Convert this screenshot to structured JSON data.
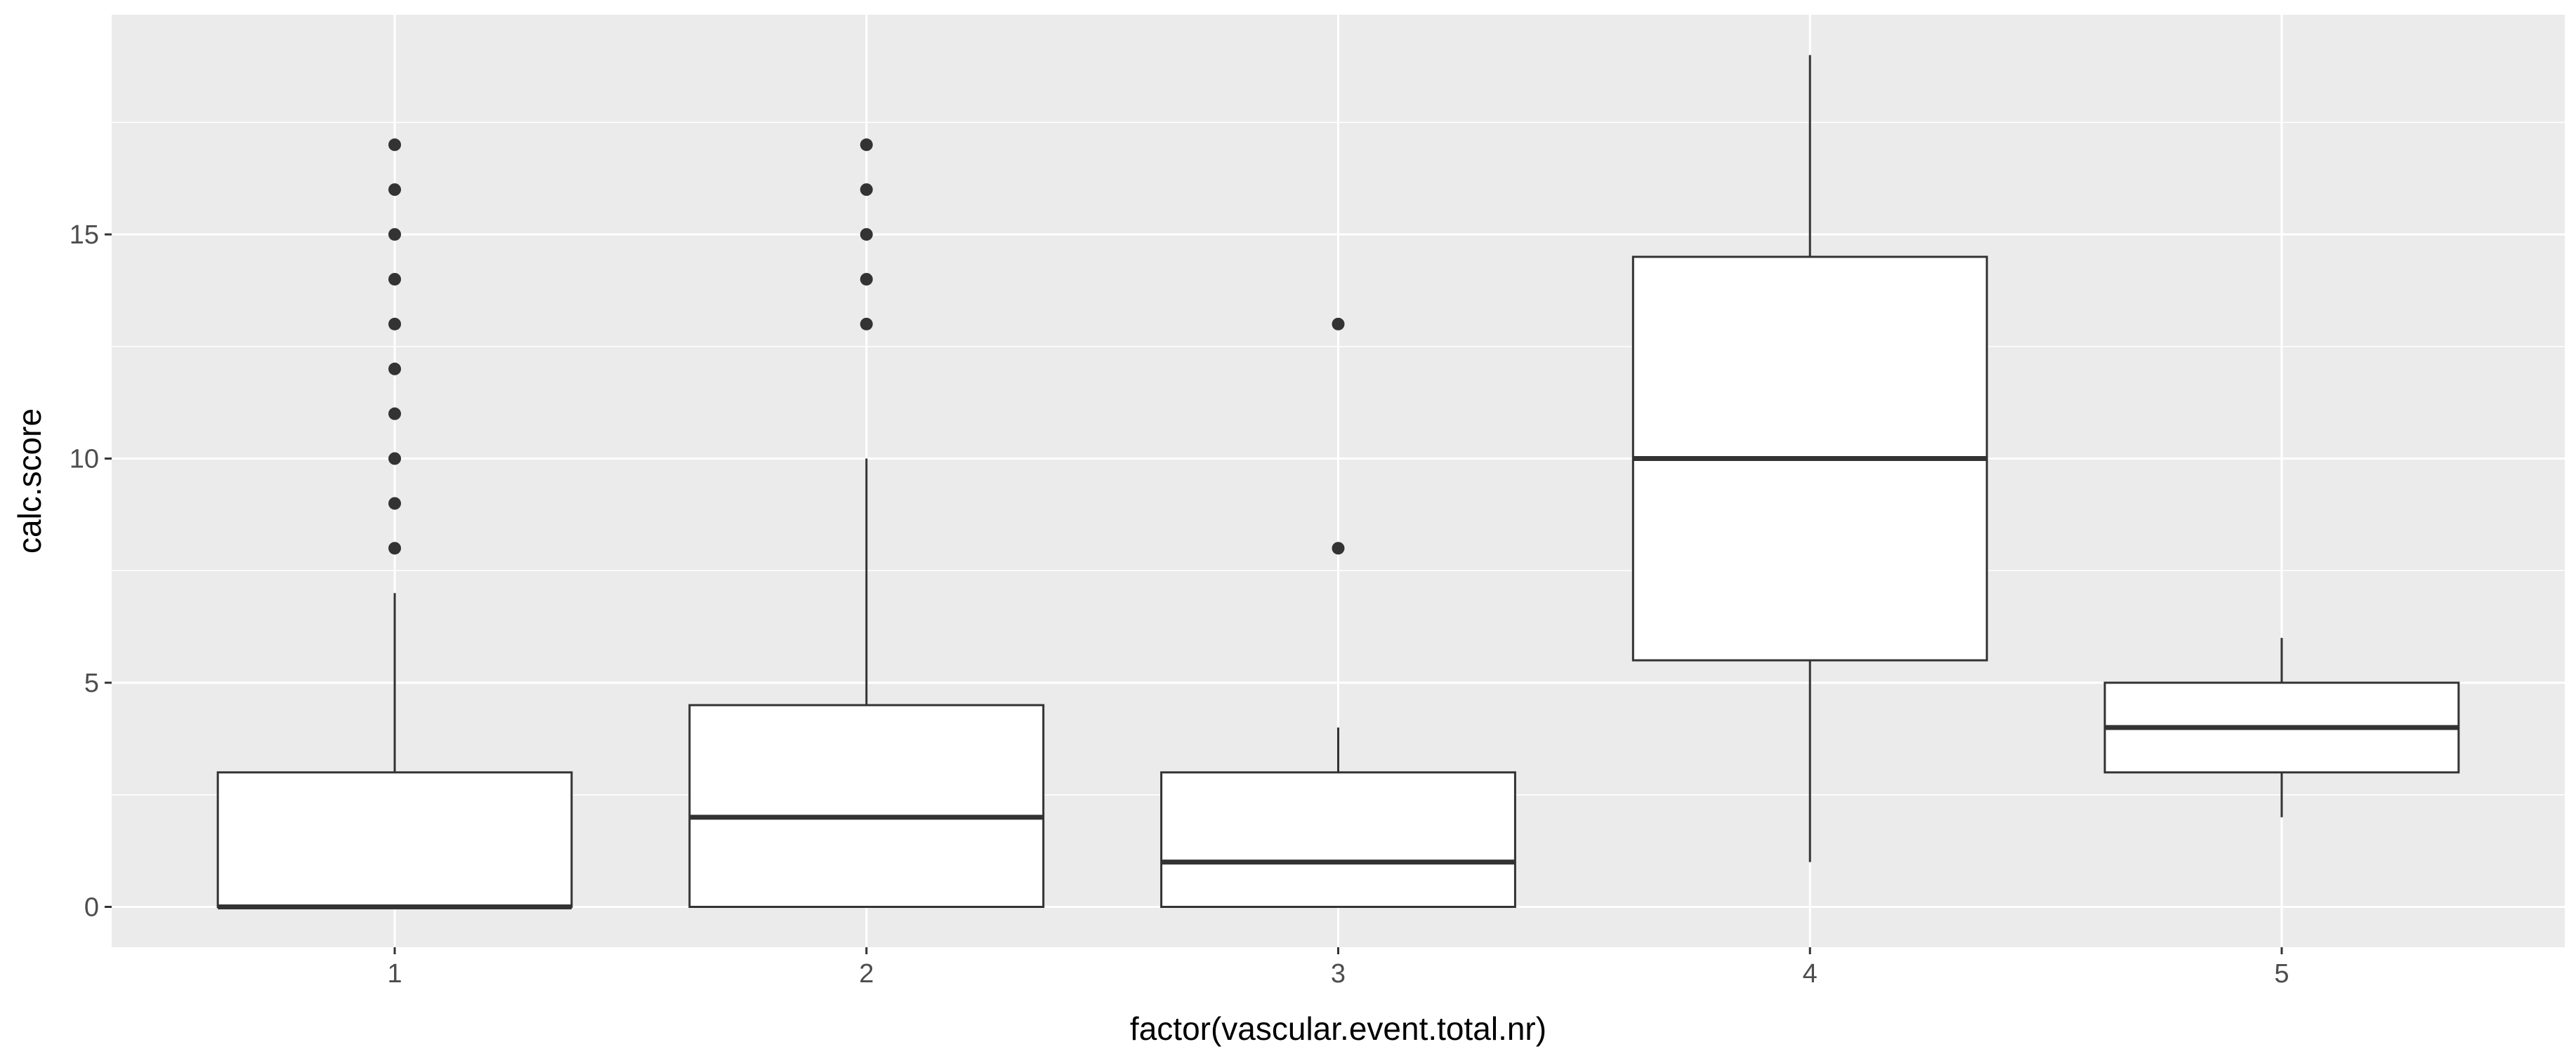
{
  "chart_data": {
    "type": "boxplot",
    "xlabel": "factor(vascular.event.total.nr)",
    "ylabel": "calc.score",
    "categories": [
      "1",
      "2",
      "3",
      "4",
      "5"
    ],
    "ylim": [
      -0.9,
      19.9
    ],
    "yticks": [
      0,
      5,
      10,
      15
    ],
    "grid": true,
    "background": "#ebebeb",
    "grid_major_color": "#ffffff",
    "box_fill": "#ffffff",
    "line_color": "#333333",
    "boxes": [
      {
        "category": "1",
        "lower_whisker": 0,
        "q1": 0,
        "median": 0,
        "q3": 3,
        "upper_whisker": 7,
        "outliers": [
          8,
          9,
          10,
          11,
          12,
          13,
          14,
          15,
          16,
          17
        ]
      },
      {
        "category": "2",
        "lower_whisker": 0,
        "q1": 0,
        "median": 2,
        "q3": 4.5,
        "upper_whisker": 10,
        "outliers": [
          13,
          14,
          15,
          16,
          17
        ]
      },
      {
        "category": "3",
        "lower_whisker": 0,
        "q1": 0,
        "median": 1,
        "q3": 3,
        "upper_whisker": 4,
        "outliers": [
          8,
          13
        ]
      },
      {
        "category": "4",
        "lower_whisker": 1,
        "q1": 5.5,
        "median": 10,
        "q3": 14.5,
        "upper_whisker": 19,
        "outliers": []
      },
      {
        "category": "5",
        "lower_whisker": 2,
        "q1": 3,
        "median": 4,
        "q3": 5,
        "upper_whisker": 6,
        "outliers": []
      }
    ]
  }
}
